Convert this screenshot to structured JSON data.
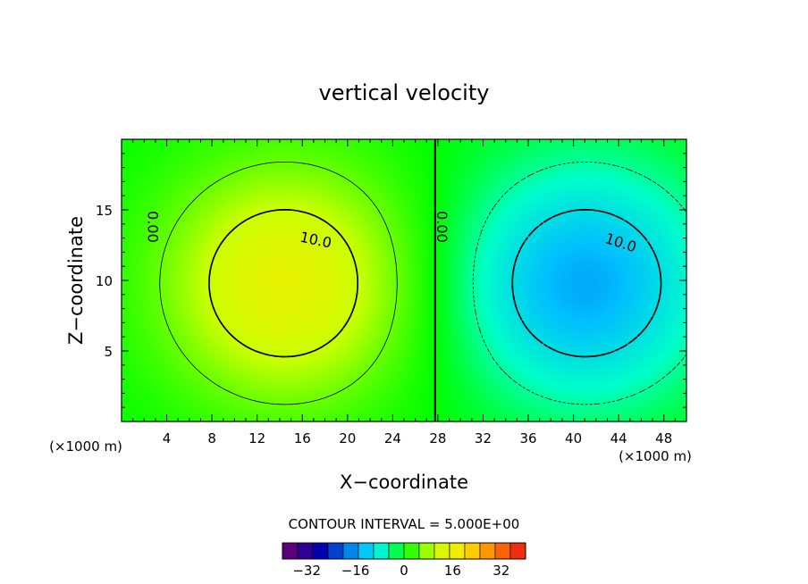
{
  "chart_data": {
    "type": "heatmap",
    "title": "vertical velocity",
    "xlabel": "X−coordinate",
    "ylabel": "Z−coordinate",
    "x_unit": "(×1000 m)",
    "z_unit": "(×1000 m)",
    "xlim": [
      0,
      50
    ],
    "ylim": [
      0,
      20
    ],
    "x_ticks": [
      4,
      8,
      12,
      16,
      20,
      24,
      28,
      32,
      36,
      40,
      44,
      48
    ],
    "y_ticks": [
      5,
      10,
      15
    ],
    "field": {
      "updraft": {
        "x_center": 14.5,
        "z_center": 9.8,
        "peak": 15
      },
      "downdraft": {
        "x_center": 41,
        "z_center": 9.8,
        "peak": -15
      }
    },
    "contour_levels": [
      -10,
      -5,
      0,
      5,
      10
    ],
    "contour_labels": {
      "zero_left": "0.00",
      "zero_right": "0.00",
      "positive": "10.0",
      "negative": "10.0"
    },
    "contour_interval_text": "CONTOUR INTERVAL = 5.000E+00",
    "colorbar": {
      "range": [
        -40,
        40
      ],
      "step": 5,
      "tick_values": [
        -32,
        -16,
        0,
        16,
        32
      ],
      "tick_labels": [
        "−32",
        "−16",
        "0",
        "16",
        "32"
      ]
    },
    "grid": false
  }
}
